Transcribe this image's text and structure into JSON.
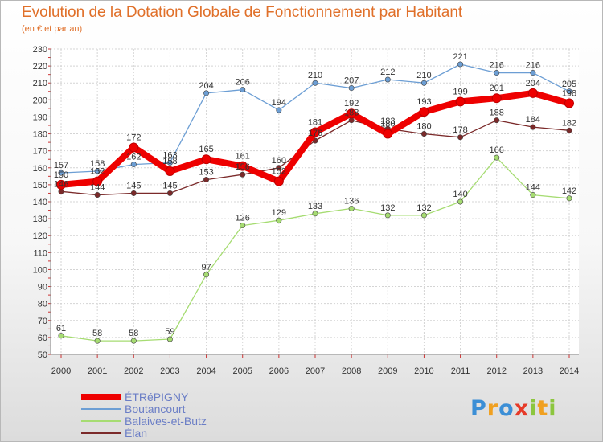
{
  "chart_data": {
    "type": "line",
    "title": "Evolution de la Dotation Globale de Fonctionnement par Habitant",
    "subtitle": "(en € et par an)",
    "x": [
      2000,
      2001,
      2002,
      2003,
      2004,
      2005,
      2006,
      2007,
      2008,
      2009,
      2010,
      2011,
      2012,
      2013,
      2014
    ],
    "x_labels": [
      "2000",
      "2001",
      "2002",
      "2003",
      "2004",
      "2005",
      "2006",
      "2007",
      "2008",
      "2009",
      "2010",
      "2011",
      "2012",
      "2013",
      "2014"
    ],
    "ylim": [
      50,
      230
    ],
    "y_ticks": [
      50,
      60,
      70,
      80,
      90,
      100,
      110,
      120,
      130,
      140,
      150,
      160,
      170,
      180,
      190,
      200,
      210,
      220,
      230
    ],
    "grid": true,
    "legend_position": "bottom-left",
    "series": [
      {
        "name": "ÉTRéPIGNY",
        "color": "#ee0000",
        "values": [
          150,
          152,
          172,
          158,
          165,
          161,
          152,
          181,
          192,
          180,
          193,
          199,
          201,
          204,
          198
        ],
        "labels": [
          "150",
          "152",
          "172",
          "158",
          "165",
          "161",
          "152",
          "181",
          "192",
          "180",
          "193",
          "199",
          "201",
          "204",
          "198"
        ]
      },
      {
        "name": "Boutancourt",
        "color": "#6c9ed4",
        "values": [
          157,
          158,
          162,
          163,
          204,
          206,
          194,
          210,
          207,
          212,
          210,
          221,
          216,
          216,
          205
        ],
        "labels": [
          "157",
          "158",
          "162",
          "163",
          "204",
          "206",
          "194",
          "210",
          "207",
          "212",
          "210",
          "221",
          "216",
          "216",
          "205"
        ]
      },
      {
        "name": "Balaives-et-Butz",
        "color": "#a6dc72",
        "values": [
          61,
          58,
          58,
          59,
          97,
          126,
          129,
          133,
          136,
          132,
          132,
          140,
          166,
          144,
          142
        ],
        "labels": [
          "61",
          "58",
          "58",
          "59",
          "97",
          "126",
          "129",
          "133",
          "136",
          "132",
          "132",
          "140",
          "166",
          "144",
          "142"
        ]
      },
      {
        "name": "Élan",
        "color": "#7b2a2a",
        "values": [
          146,
          144,
          145,
          145,
          153,
          156,
          160,
          176,
          188,
          183,
          180,
          178,
          188,
          184,
          182
        ],
        "labels": [
          "146",
          "144",
          "145",
          "145",
          "153",
          "156",
          "160",
          "176",
          "188",
          "183",
          "180",
          "178",
          "188",
          "184",
          "182"
        ]
      }
    ]
  },
  "brand": {
    "text": "Proxiti"
  }
}
